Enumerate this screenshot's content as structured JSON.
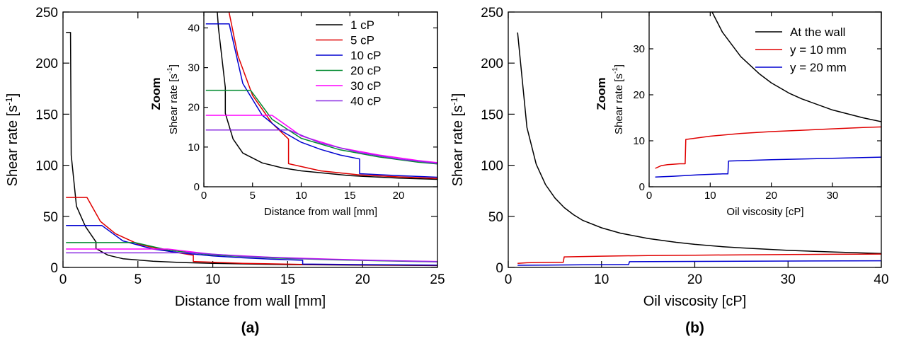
{
  "chart_data": [
    {
      "type": "line",
      "panel_label": "(a)",
      "xlabel": "Distance from wall [mm]",
      "ylabel_base": "Shear rate [s",
      "ylabel_exp": "-1",
      "ylabel_end": "]",
      "xlim": [
        0,
        25
      ],
      "ylim": [
        0,
        250
      ],
      "xticks": [
        0,
        5,
        10,
        15,
        20,
        25
      ],
      "yticks": [
        0,
        50,
        100,
        150,
        200,
        250
      ],
      "series": [
        {
          "name": "1 cP",
          "color": "#000000",
          "x": [
            0.2,
            0.5,
            0.55,
            0.9,
            1.5,
            2.2,
            2.2,
            3,
            4,
            6,
            8,
            10,
            15,
            20,
            25
          ],
          "y": [
            230,
            230,
            110,
            60,
            40,
            25,
            18.5,
            12,
            8.5,
            6,
            4.8,
            4,
            2.8,
            2.2,
            1.8
          ]
        },
        {
          "name": "5 cP",
          "color": "#e00000",
          "x": [
            0.2,
            1.6,
            2.5,
            3.5,
            5,
            7,
            8.7,
            8.7,
            12,
            16,
            20,
            25
          ],
          "y": [
            68.5,
            68.5,
            45,
            33,
            23,
            16,
            12,
            5.8,
            4,
            3,
            2.5,
            2
          ]
        },
        {
          "name": "10 cP",
          "color": "#0000d0",
          "x": [
            0.2,
            2.6,
            4,
            6,
            8,
            10,
            12,
            14,
            16,
            16,
            20,
            25
          ],
          "y": [
            41,
            41,
            26,
            18,
            14,
            11.2,
            9.4,
            8,
            7,
            3.3,
            2.8,
            2.3
          ]
        },
        {
          "name": "20 cP",
          "color": "#008a2e",
          "x": [
            0.2,
            4.8,
            7,
            10,
            14,
            18,
            22,
            25
          ],
          "y": [
            24.3,
            24.3,
            17,
            12.2,
            9.3,
            7.5,
            6.2,
            5.5
          ]
        },
        {
          "name": "30 cP",
          "color": "#ff00ff",
          "x": [
            0.2,
            7,
            10,
            14,
            18,
            22,
            25
          ],
          "y": [
            18,
            18,
            12.8,
            9.8,
            8,
            6.6,
            5.8
          ]
        },
        {
          "name": "40 cP",
          "color": "#8a2be2",
          "x": [
            0.2,
            8.7,
            12,
            16,
            20,
            25
          ],
          "y": [
            14.3,
            14.3,
            11,
            8.6,
            7,
            5.6
          ]
        }
      ]
    },
    {
      "type": "line",
      "inset": true,
      "zoom_label": "Zoom",
      "xlabel": "Distance from wall [mm]",
      "ylabel_base": "Shear rate [s",
      "ylabel_exp": "-1",
      "ylabel_end": "]",
      "xlim": [
        0,
        24
      ],
      "ylim": [
        0,
        44
      ],
      "xticks": [
        0,
        5,
        10,
        15,
        20
      ],
      "yticks": [
        0,
        10,
        20,
        30,
        40
      ],
      "legend_position": "top-right"
    },
    {
      "type": "line",
      "panel_label": "(b)",
      "xlabel": "Oil viscosity [cP]",
      "ylabel_base": "Shear rate [s",
      "ylabel_exp": "-1",
      "ylabel_end": "]",
      "xlim": [
        0,
        40
      ],
      "ylim": [
        0,
        250
      ],
      "xticks": [
        0,
        10,
        20,
        30,
        40
      ],
      "yticks": [
        0,
        50,
        100,
        150,
        200,
        250
      ],
      "series": [
        {
          "name": "At the wall",
          "color": "#000000",
          "x": [
            1,
            2,
            3,
            4,
            5,
            6,
            7,
            8,
            10,
            12,
            15,
            18,
            20,
            23,
            25,
            30,
            35,
            40
          ],
          "y": [
            230,
            137,
            101,
            81,
            68,
            58.6,
            51.6,
            46,
            38.8,
            33.6,
            28.3,
            24.6,
            22.6,
            20.3,
            19.1,
            16.7,
            15,
            13.6
          ]
        },
        {
          "name": "y = 10 mm",
          "color": "#e00000",
          "x": [
            1,
            2,
            3,
            5,
            5.9,
            6,
            10,
            15,
            20,
            25,
            30,
            35,
            40
          ],
          "y": [
            4,
            4.6,
            4.8,
            5,
            5,
            10.3,
            11,
            11.6,
            12,
            12.3,
            12.6,
            12.9,
            13.1
          ]
        },
        {
          "name": "y = 20 mm",
          "color": "#0000d0",
          "x": [
            1,
            4,
            8,
            12,
            12.9,
            13,
            20,
            30,
            40
          ],
          "y": [
            2.1,
            2.3,
            2.6,
            2.8,
            2.8,
            5.6,
            5.9,
            6.2,
            6.5
          ]
        }
      ]
    },
    {
      "type": "line",
      "inset": true,
      "zoom_label": "Zoom",
      "xlabel": "Oil viscosity [cP]",
      "ylabel_base": "Shear rate [s",
      "ylabel_exp": "-1",
      "ylabel_end": "]",
      "xlim": [
        0,
        38
      ],
      "ylim": [
        0,
        38
      ],
      "xticks": [
        0,
        10,
        20,
        30
      ],
      "yticks": [
        0,
        10,
        20,
        30
      ],
      "legend_position": "top-right"
    }
  ]
}
